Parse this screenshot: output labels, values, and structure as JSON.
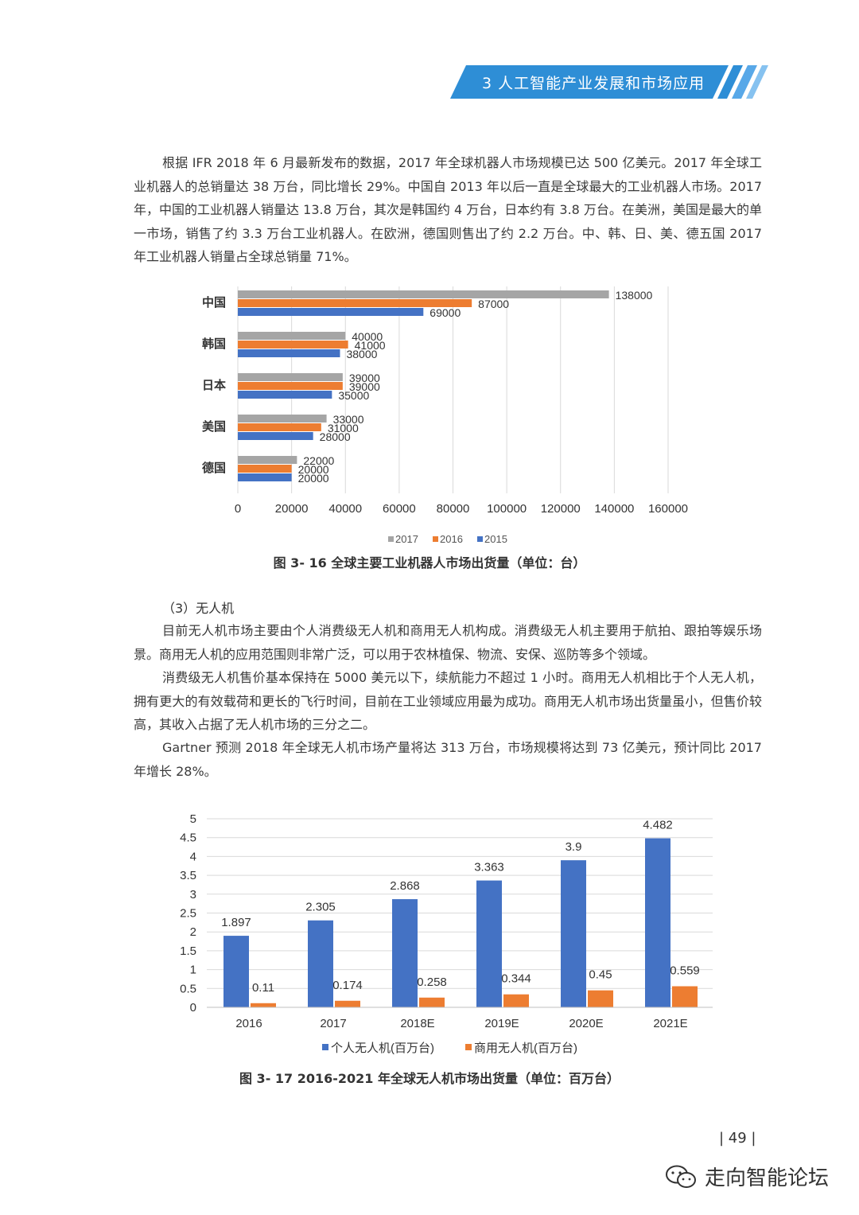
{
  "header": {
    "title": "3 人工智能产业发展和市场应用"
  },
  "intro_paragraph": "根据 IFR 2018 年 6 月最新发布的数据，2017 年全球机器人市场规模已达 500 亿美元。2017 年全球工业机器人的总销量达 38 万台，同比增长 29%。中国自 2013 年以后一直是全球最大的工业机器人市场。2017 年，中国的工业机器人销量达 13.8 万台，其次是韩国约 4 万台，日本约有 3.8 万台。在美洲，美国是最大的单一市场，销售了约 3.3 万台工业机器人。在欧洲，德国则售出了约 2.2 万台。中、韩、日、美、德五国 2017 年工业机器人销量占全球总销量 71%。",
  "section3": {
    "heading": "（3）无人机",
    "paragraphs": [
      "目前无人机市场主要由个人消费级无人机和商用无人机构成。消费级无人机主要用于航拍、跟拍等娱乐场景。商用无人机的应用范围则非常广泛，可以用于农林植保、物流、安保、巡防等多个领域。",
      "消费级无人机售价基本保持在 5000 美元以下，续航能力不超过 1 小时。商用无人机相比于个人无人机，拥有更大的有效载荷和更长的飞行时间，目前在工业领域应用最为成功。商用无人机市场出货量虽小，但售价较高，其收入占据了无人机市场的三分之二。",
      "Gartner 预测 2018 年全球无人机市场产量将达 313 万台，市场规模将达到 73 亿美元，预计同比 2017 年增长 28%。"
    ]
  },
  "figure16": {
    "caption": "图 3- 16  全球主要工业机器人市场出货量（单位：台）"
  },
  "figure17": {
    "caption": "图 3- 17  2016-2021 年全球无人机市场出货量（单位：百万台）"
  },
  "page_number": "| 49 |",
  "watermark": {
    "text": "走向智能论坛",
    "icon": "wechat-icon"
  },
  "colors": {
    "banner": "#2e8ed6",
    "series_2017": "#a5a5a5",
    "series_2016": "#ed7d31",
    "series_2015": "#4472c4"
  },
  "chart_data": [
    {
      "type": "bar",
      "orientation": "horizontal",
      "categories": [
        "中国",
        "韩国",
        "日本",
        "美国",
        "德国"
      ],
      "series": [
        {
          "name": "2017",
          "values": [
            138000,
            40000,
            39000,
            33000,
            22000
          ]
        },
        {
          "name": "2016",
          "values": [
            87000,
            41000,
            39000,
            31000,
            20000
          ]
        },
        {
          "name": "2015",
          "values": [
            69000,
            38000,
            35000,
            28000,
            20000
          ]
        }
      ],
      "xlim": [
        0,
        160000
      ],
      "xticks": [
        "0",
        "20000",
        "40000",
        "60000",
        "80000",
        "100000",
        "120000",
        "140000",
        "160000"
      ],
      "legend": "bottom",
      "grid": true
    },
    {
      "type": "bar",
      "categories": [
        "2016",
        "2017",
        "2018E",
        "2019E",
        "2020E",
        "2021E"
      ],
      "series": [
        {
          "name": "个人无人机(百万台)",
          "values": [
            1.897,
            2.305,
            2.868,
            3.363,
            3.9,
            4.482
          ],
          "labels": [
            "1.897",
            "2.305",
            "2.868",
            "3.363",
            "3.9",
            "4.482"
          ]
        },
        {
          "name": "商用无人机(百万台)",
          "values": [
            0.11,
            0.174,
            0.258,
            0.344,
            0.45,
            0.559
          ],
          "labels": "0.11,0.174,0.258,0.344,0.45,0.559"
        }
      ],
      "ylim": [
        0,
        5
      ],
      "yticks": [
        "0",
        "0.5",
        "1",
        "1.5",
        "2",
        "2.5",
        "3",
        "3.5",
        "4",
        "4.5",
        "5"
      ],
      "legend": "bottom",
      "grid": true
    }
  ]
}
